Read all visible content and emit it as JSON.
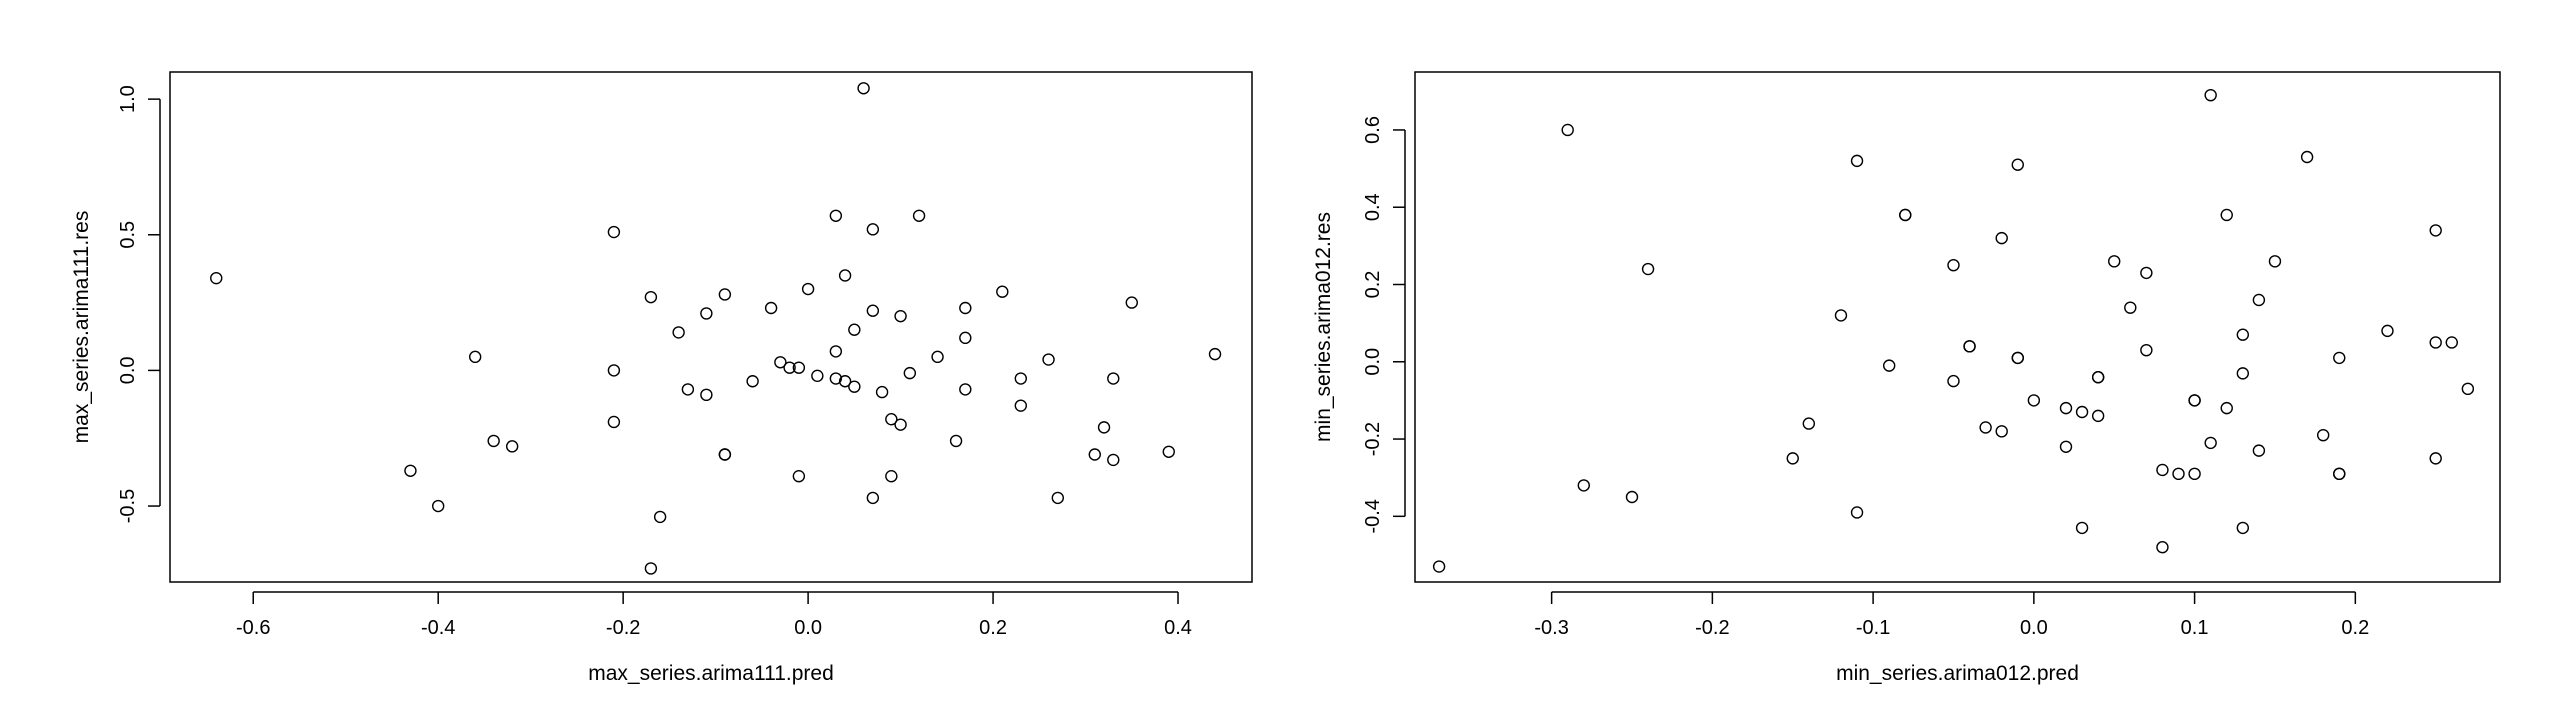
{
  "chart_data": [
    {
      "type": "scatter",
      "xlabel": "max_series.arima111.pred",
      "ylabel": "max_series.arima111.res",
      "xlim": [
        -0.69,
        0.48
      ],
      "ylim": [
        -0.78,
        1.1
      ],
      "xticks": [
        -0.6,
        -0.4,
        -0.2,
        0.0,
        0.2,
        0.4
      ],
      "xtick_labels": [
        "-0.6",
        "-0.4",
        "-0.2",
        "0.0",
        "0.2",
        "0.4"
      ],
      "yticks": [
        -0.5,
        0.0,
        0.5,
        1.0
      ],
      "ytick_labels": [
        "-0.5",
        "0.0",
        "0.5",
        "1.0"
      ],
      "points": [
        [
          -0.64,
          0.34
        ],
        [
          -0.43,
          -0.37
        ],
        [
          -0.4,
          -0.5
        ],
        [
          -0.36,
          0.05
        ],
        [
          -0.34,
          -0.26
        ],
        [
          -0.32,
          -0.28
        ],
        [
          -0.21,
          0.51
        ],
        [
          -0.21,
          0.0
        ],
        [
          -0.21,
          -0.19
        ],
        [
          -0.17,
          0.27
        ],
        [
          -0.17,
          -0.73
        ],
        [
          -0.16,
          -0.54
        ],
        [
          -0.14,
          0.14
        ],
        [
          -0.13,
          -0.07
        ],
        [
          -0.11,
          0.21
        ],
        [
          -0.11,
          -0.09
        ],
        [
          -0.09,
          -0.31
        ],
        [
          -0.09,
          -0.31
        ],
        [
          -0.09,
          0.28
        ],
        [
          -0.06,
          -0.04
        ],
        [
          -0.04,
          0.23
        ],
        [
          -0.03,
          0.03
        ],
        [
          -0.02,
          0.01
        ],
        [
          -0.01,
          -0.39
        ],
        [
          -0.01,
          0.01
        ],
        [
          0.0,
          0.3
        ],
        [
          0.01,
          -0.02
        ],
        [
          0.03,
          0.57
        ],
        [
          0.03,
          0.07
        ],
        [
          0.03,
          -0.03
        ],
        [
          0.04,
          -0.04
        ],
        [
          0.04,
          0.35
        ],
        [
          0.05,
          0.15
        ],
        [
          0.05,
          -0.06
        ],
        [
          0.06,
          1.04
        ],
        [
          0.07,
          -0.47
        ],
        [
          0.07,
          0.52
        ],
        [
          0.07,
          0.22
        ],
        [
          0.08,
          -0.08
        ],
        [
          0.09,
          -0.18
        ],
        [
          0.09,
          -0.39
        ],
        [
          0.1,
          0.2
        ],
        [
          0.1,
          -0.2
        ],
        [
          0.11,
          -0.01
        ],
        [
          0.12,
          0.57
        ],
        [
          0.14,
          0.05
        ],
        [
          0.16,
          -0.26
        ],
        [
          0.17,
          -0.07
        ],
        [
          0.17,
          0.12
        ],
        [
          0.17,
          0.23
        ],
        [
          0.21,
          0.29
        ],
        [
          0.23,
          -0.03
        ],
        [
          0.23,
          -0.13
        ],
        [
          0.26,
          0.04
        ],
        [
          0.27,
          -0.47
        ],
        [
          0.31,
          -0.31
        ],
        [
          0.32,
          -0.21
        ],
        [
          0.33,
          -0.03
        ],
        [
          0.33,
          -0.33
        ],
        [
          0.35,
          0.25
        ],
        [
          0.39,
          -0.3
        ],
        [
          0.44,
          0.06
        ]
      ]
    },
    {
      "type": "scatter",
      "xlabel": "min_series.arima012.pred",
      "ylabel": "min_series.arima012.res",
      "xlim": [
        -0.385,
        0.29
      ],
      "ylim": [
        -0.57,
        0.75
      ],
      "xticks": [
        -0.3,
        -0.2,
        -0.1,
        0.0,
        0.1,
        0.2
      ],
      "xtick_labels": [
        "-0.3",
        "-0.2",
        "-0.1",
        "0.0",
        "0.1",
        "0.2"
      ],
      "yticks": [
        -0.4,
        -0.2,
        0.0,
        0.2,
        0.4,
        0.6
      ],
      "ytick_labels": [
        "-0.4",
        "-0.2",
        "0.0",
        "0.2",
        "0.4",
        "0.6"
      ],
      "points": [
        [
          -0.37,
          -0.53
        ],
        [
          -0.29,
          0.6
        ],
        [
          -0.28,
          -0.32
        ],
        [
          -0.25,
          -0.35
        ],
        [
          -0.24,
          0.24
        ],
        [
          -0.15,
          -0.25
        ],
        [
          -0.14,
          -0.16
        ],
        [
          -0.12,
          0.12
        ],
        [
          -0.11,
          0.52
        ],
        [
          -0.11,
          -0.39
        ],
        [
          -0.09,
          -0.01
        ],
        [
          -0.08,
          0.38
        ],
        [
          -0.08,
          0.38
        ],
        [
          -0.05,
          0.25
        ],
        [
          -0.05,
          -0.05
        ],
        [
          -0.04,
          0.04
        ],
        [
          -0.04,
          0.04
        ],
        [
          -0.03,
          -0.17
        ],
        [
          -0.02,
          -0.18
        ],
        [
          -0.02,
          0.32
        ],
        [
          -0.01,
          0.51
        ],
        [
          -0.01,
          0.01
        ],
        [
          -0.01,
          0.01
        ],
        [
          0.0,
          -0.1
        ],
        [
          0.02,
          -0.12
        ],
        [
          0.02,
          -0.22
        ],
        [
          0.03,
          -0.43
        ],
        [
          0.03,
          -0.13
        ],
        [
          0.04,
          -0.04
        ],
        [
          0.04,
          -0.14
        ],
        [
          0.04,
          -0.04
        ],
        [
          0.05,
          0.26
        ],
        [
          0.06,
          0.14
        ],
        [
          0.07,
          0.23
        ],
        [
          0.07,
          0.03
        ],
        [
          0.08,
          -0.48
        ],
        [
          0.08,
          -0.28
        ],
        [
          0.09,
          -0.29
        ],
        [
          0.1,
          -0.29
        ],
        [
          0.1,
          -0.1
        ],
        [
          0.1,
          -0.1
        ],
        [
          0.11,
          -0.21
        ],
        [
          0.11,
          0.69
        ],
        [
          0.12,
          -0.12
        ],
        [
          0.12,
          0.38
        ],
        [
          0.13,
          -0.43
        ],
        [
          0.13,
          -0.03
        ],
        [
          0.13,
          0.07
        ],
        [
          0.14,
          -0.23
        ],
        [
          0.14,
          0.16
        ],
        [
          0.15,
          0.26
        ],
        [
          0.17,
          0.53
        ],
        [
          0.18,
          -0.19
        ],
        [
          0.19,
          -0.29
        ],
        [
          0.19,
          -0.29
        ],
        [
          0.19,
          0.01
        ],
        [
          0.22,
          0.08
        ],
        [
          0.25,
          -0.25
        ],
        [
          0.25,
          0.05
        ],
        [
          0.25,
          0.34
        ],
        [
          0.26,
          0.05
        ],
        [
          0.27,
          -0.07
        ]
      ]
    }
  ]
}
